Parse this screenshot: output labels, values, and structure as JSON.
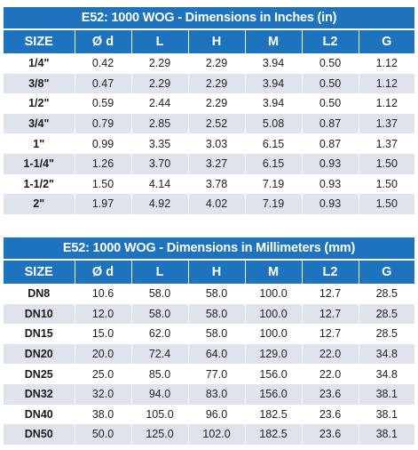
{
  "inches": {
    "title": "E52: 1000 WOG - Dimensions in Inches (in)",
    "headers": [
      "SIZE",
      "Ø d",
      "L",
      "H",
      "M",
      "L2",
      "G"
    ],
    "rows": [
      [
        "1/4\"",
        "0.42",
        "2.29",
        "2.29",
        "3.94",
        "0.50",
        "1.12"
      ],
      [
        "3/8\"",
        "0.47",
        "2.29",
        "2.29",
        "3.94",
        "0.50",
        "1.12"
      ],
      [
        "1/2\"",
        "0.59",
        "2.44",
        "2.29",
        "3.94",
        "0.50",
        "1.12"
      ],
      [
        "3/4\"",
        "0.79",
        "2.85",
        "2.52",
        "5.08",
        "0.87",
        "1.37"
      ],
      [
        "1\"",
        "0.99",
        "3.35",
        "3.03",
        "6.15",
        "0.87",
        "1.37"
      ],
      [
        "1-1/4\"",
        "1.26",
        "3.70",
        "3.27",
        "6.15",
        "0.93",
        "1.50"
      ],
      [
        "1-1/2\"",
        "1.50",
        "4.14",
        "3.78",
        "7.19",
        "0.93",
        "1.50"
      ],
      [
        "2\"",
        "1.97",
        "4.92",
        "4.02",
        "7.19",
        "0.93",
        "1.50"
      ]
    ]
  },
  "millimeters": {
    "title": "E52: 1000 WOG - Dimensions in Millimeters (mm)",
    "headers": [
      "SIZE",
      "Ø d",
      "L",
      "H",
      "M",
      "L2",
      "G"
    ],
    "rows": [
      [
        "DN8",
        "10.6",
        "58.0",
        "58.0",
        "100.0",
        "12.7",
        "28.5"
      ],
      [
        "DN10",
        "12.0",
        "58.0",
        "58.0",
        "100.0",
        "12.7",
        "28.5"
      ],
      [
        "DN15",
        "15.0",
        "62.0",
        "58.0",
        "100.0",
        "12.7",
        "28.5"
      ],
      [
        "DN20",
        "20.0",
        "72.4",
        "64.0",
        "129.0",
        "22.0",
        "34.8"
      ],
      [
        "DN25",
        "25.0",
        "85.0",
        "77.0",
        "156.0",
        "22.0",
        "34.8"
      ],
      [
        "DN32",
        "32.0",
        "94.0",
        "83.0",
        "156.0",
        "23.6",
        "38.1"
      ],
      [
        "DN40",
        "38.0",
        "105.0",
        "96.0",
        "182.5",
        "23.6",
        "38.1"
      ],
      [
        "DN50",
        "50.0",
        "125.0",
        "102.0",
        "182.5",
        "23.6",
        "38.1"
      ]
    ]
  },
  "colors": {
    "header_blue": "#1e73be",
    "stripe": "#dfe3ec"
  }
}
